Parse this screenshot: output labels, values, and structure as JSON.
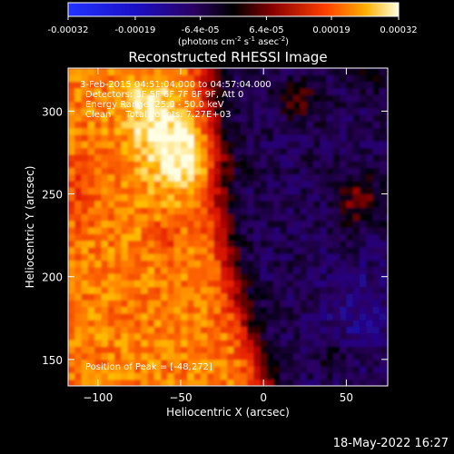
{
  "chart_data": {
    "type": "heatmap",
    "title": "Reconstructed RHESSI Image",
    "xlabel": "Heliocentric X (arcsec)",
    "ylabel": "Heliocentric Y (arcsec)",
    "xlim": [
      -118,
      75
    ],
    "ylim": [
      134,
      326
    ],
    "xticks": [
      -100,
      -50,
      0,
      50
    ],
    "yticks": [
      150,
      200,
      250,
      300
    ],
    "colorbar": {
      "ticks": [
        "-0.00032",
        "-0.00019",
        "-6.4e-05",
        "6.4e-05",
        "0.00019",
        "0.00032"
      ],
      "values": [
        -0.00032,
        -0.00019,
        -6.4e-05,
        6.4e-05,
        0.00019,
        0.00032
      ],
      "units_prefix": "(photons cm",
      "units_exp1": "-2",
      "units_mid": " s",
      "units_exp2": "-1",
      "units_suffix": " asec",
      "units_exp3": "-2",
      "units_close": ")",
      "range": [
        -0.00032,
        0.00032
      ]
    },
    "annotations": {
      "time": "3-Feb-2015 04:51:04.000 to 04:57:04.000",
      "detectors": "Detectors: 3F 5F 6F 7F 8F 9F, Att 0",
      "energy": "Energy Range: 25.0 - 50.0 keV",
      "clean": "Clean     Total counts: 7.27E+03",
      "peak": "Position of Peak = [-48,272]"
    },
    "peak_position": [
      -48,
      272
    ],
    "colors": {
      "background": "#000000",
      "text": "#ffffff"
    }
  },
  "footer": {
    "date": "18-May-2022 16:27"
  }
}
